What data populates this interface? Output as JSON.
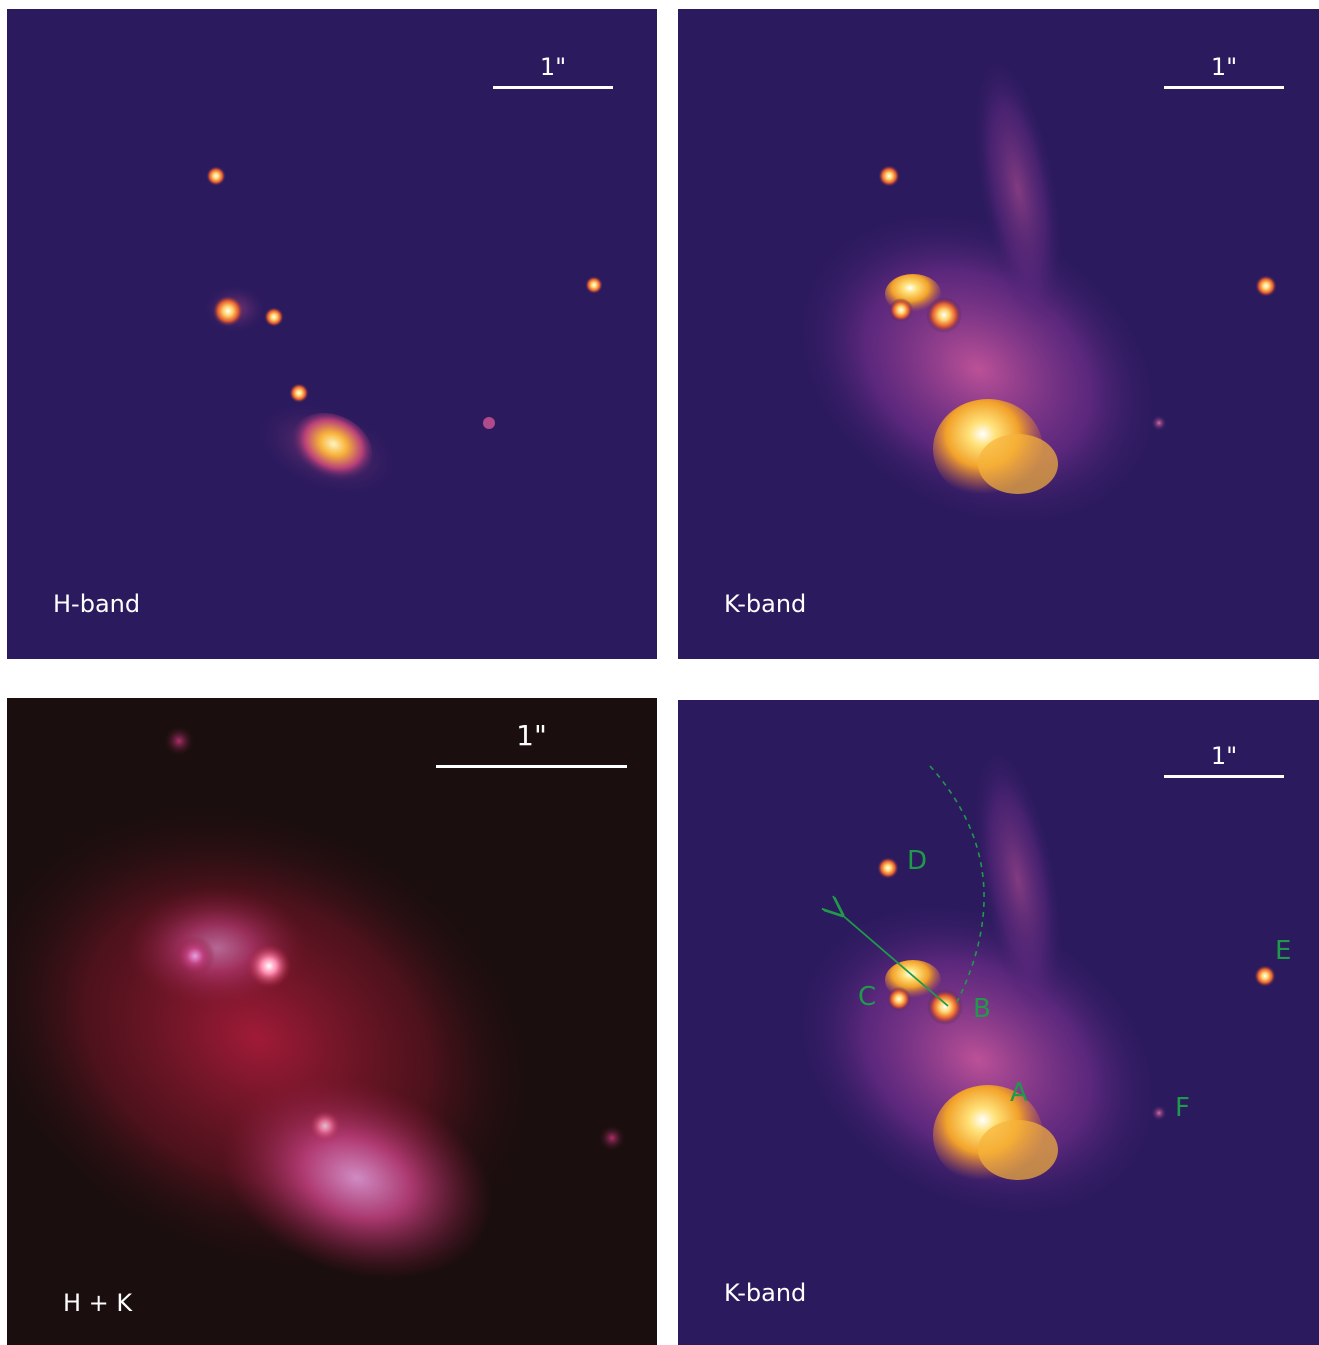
{
  "panels": [
    {
      "band_label": "H-band",
      "scale_label": "1\""
    },
    {
      "band_label": "K-band",
      "scale_label": "1\""
    },
    {
      "band_label": "H + K",
      "scale_label": "1\""
    },
    {
      "band_label": "K-band",
      "scale_label": "1\"",
      "sources": [
        "A",
        "B",
        "C",
        "D",
        "E",
        "F"
      ]
    }
  ],
  "colors": {
    "background_cmap": "#2b1a5e",
    "overlay_green": "#1f9a4a",
    "composite_red": "#b01c3c"
  }
}
